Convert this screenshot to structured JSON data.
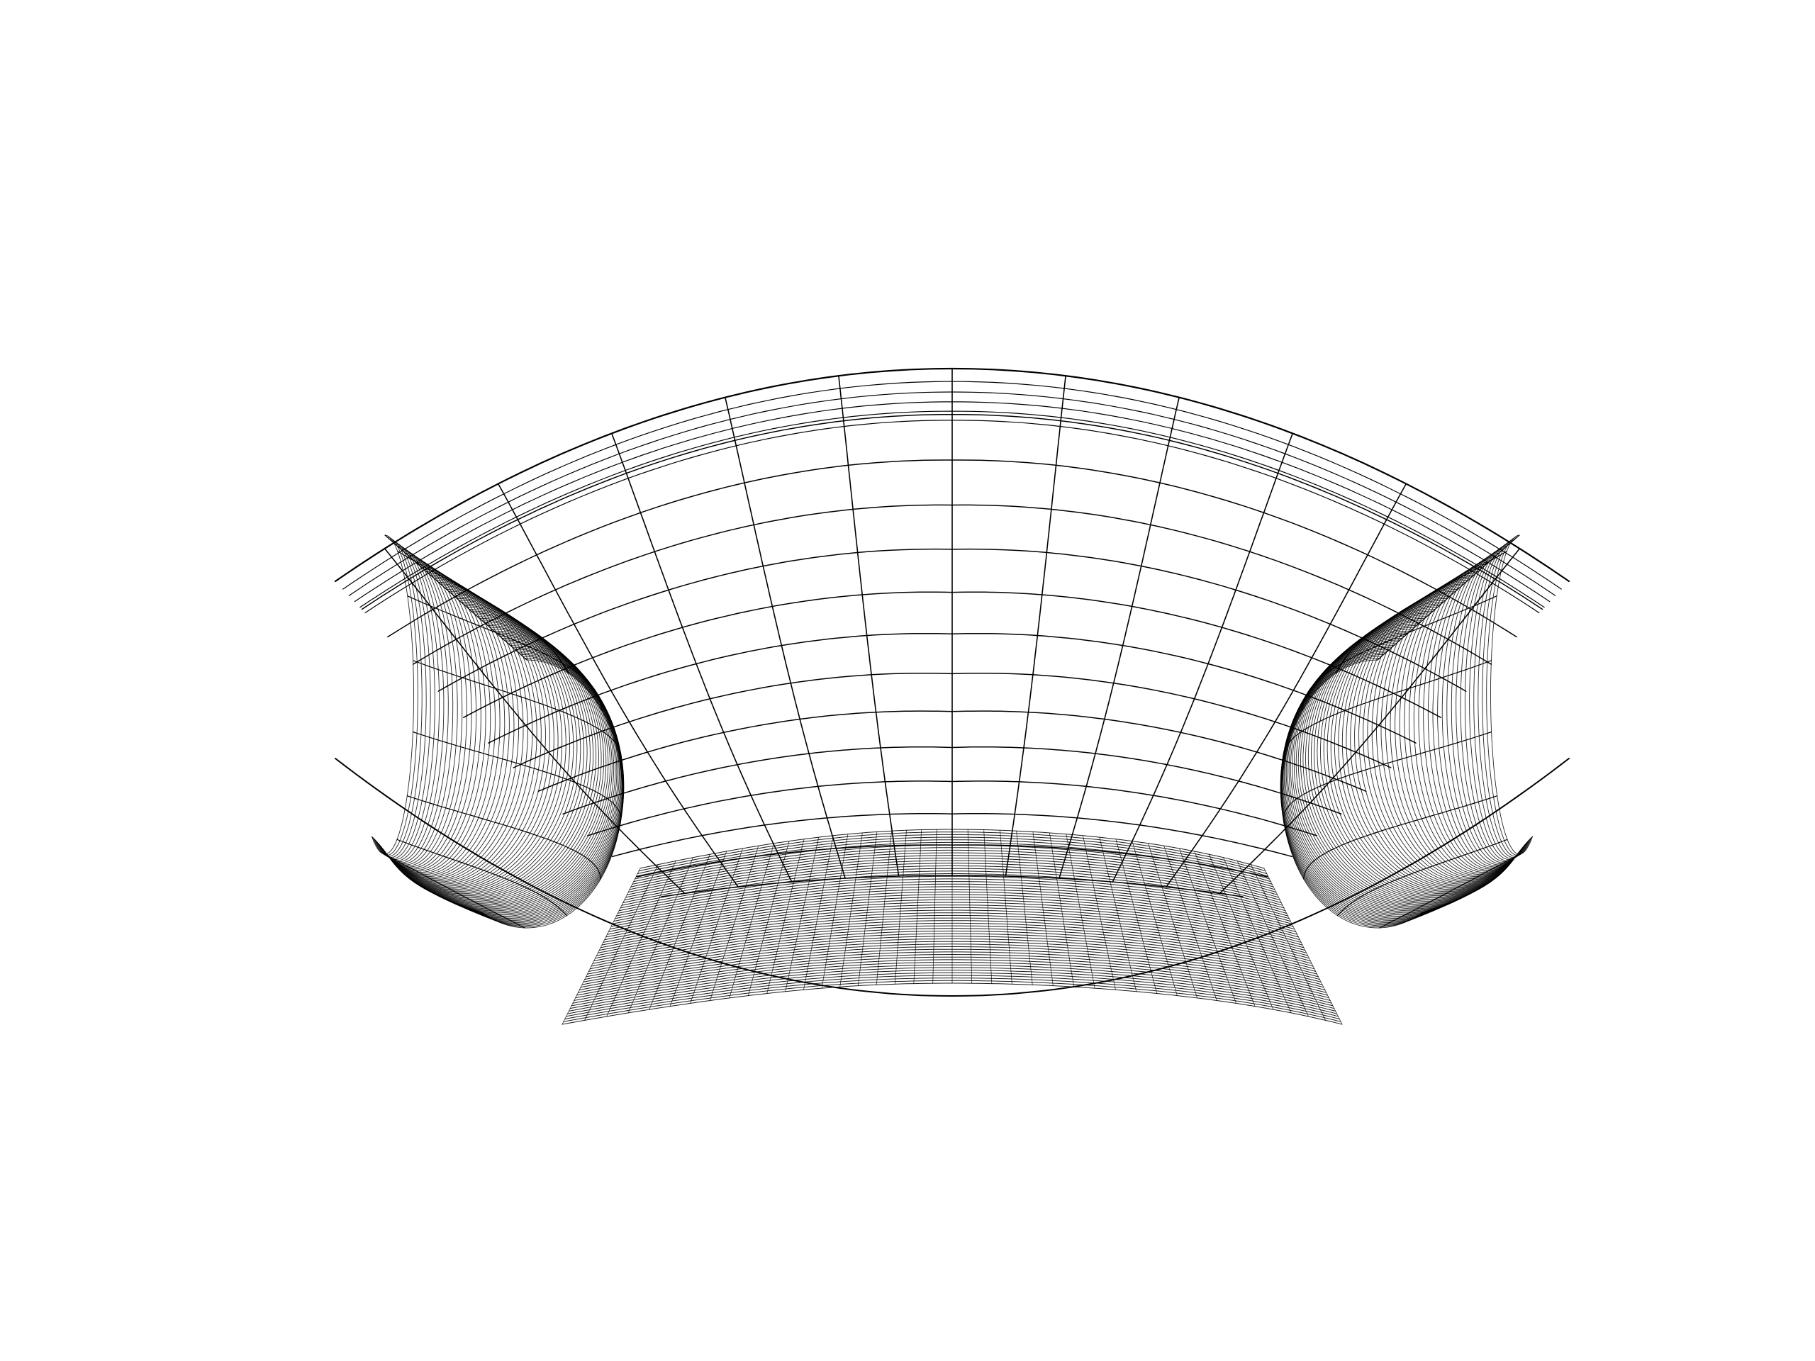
{
  "figure": {
    "kind": "wireframe-surface",
    "background_color": "#ffffff",
    "line_color": "#000000",
    "shape": "saddle-shaped bowl / shell surface viewed from above-front",
    "grid": {
      "main_meridians": 11,
      "main_parallels": 14,
      "dense_side_bands": 70,
      "dense_bottom_bands": 60
    }
  }
}
